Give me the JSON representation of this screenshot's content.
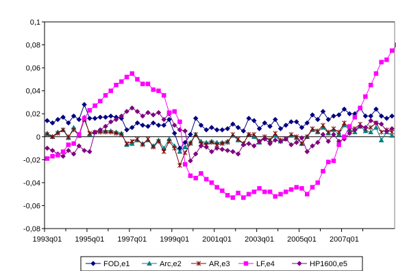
{
  "chart_data": {
    "type": "line",
    "title": "",
    "xlabel": "",
    "ylabel": "",
    "ylim": [
      -0.08,
      0.1
    ],
    "y_ticks": [
      "0,1",
      "0,08",
      "0,06",
      "0,04",
      "0,02",
      "0",
      "-0,02",
      "-0,04",
      "-0,06",
      "-0,08"
    ],
    "x_ticks": [
      "1993q01",
      "1995q01",
      "1997q01",
      "1999q01",
      "2001q01",
      "2003q01",
      "2005q01",
      "2007q01"
    ],
    "x_start": "1993q01",
    "grid": "horizontal major gridline at 0,1 only",
    "legend_position": "bottom",
    "series": [
      {
        "name": "FOD,e1",
        "color": "#000080",
        "marker": "diamond",
        "values": [
          0.014,
          0.012,
          0.015,
          0.017,
          0.012,
          0.018,
          0.015,
          0.028,
          0.016,
          0.016,
          0.017,
          0.017,
          0.018,
          0.017,
          0.016,
          0.006,
          0.008,
          0.012,
          0.01,
          0.009,
          0.012,
          0.01,
          0.01,
          0.015,
          0.003,
          -0.01,
          -0.005,
          0.002,
          0.016,
          0.01,
          0.006,
          0.008,
          0.006,
          0.006,
          0.007,
          0.011,
          0.008,
          0.005,
          0.016,
          0.014,
          0.007,
          0.012,
          0.009,
          0.015,
          0.007,
          0.01,
          0.013,
          0.013,
          0.008,
          0.012,
          0.019,
          0.015,
          0.022,
          0.015,
          0.018,
          0.019,
          0.024,
          0.02,
          0.02,
          0.025,
          0.018,
          0.018,
          0.024,
          0.018,
          0.016,
          0.018
        ]
      },
      {
        "name": "Arc,e2",
        "color": "#008080",
        "marker": "triangle",
        "values": [
          0.003,
          0.0,
          0.004,
          0.006,
          -0.001,
          0.008,
          0.001,
          0.017,
          0.002,
          0.004,
          0.005,
          0.005,
          0.005,
          0.004,
          0.003,
          -0.007,
          -0.006,
          -0.003,
          -0.006,
          -0.003,
          -0.008,
          -0.003,
          -0.01,
          -0.002,
          -0.008,
          -0.013,
          -0.009,
          -0.005,
          0.002,
          -0.004,
          -0.005,
          -0.004,
          -0.005,
          -0.005,
          -0.004,
          0.001,
          -0.003,
          -0.006,
          0.002,
          0.0,
          -0.005,
          -0.001,
          -0.003,
          0.001,
          -0.004,
          -0.002,
          0.001,
          -0.001,
          -0.006,
          0.0,
          0.006,
          0.004,
          0.008,
          0.003,
          0.006,
          0.002,
          0.01,
          0.006,
          0.004,
          0.009,
          0.005,
          0.004,
          0.008,
          -0.003,
          0.004,
          0.001
        ]
      },
      {
        "name": "AR,e3",
        "color": "#800000",
        "marker": "asterisk",
        "values": [
          0.002,
          0.0,
          0.003,
          0.006,
          0.0,
          0.006,
          0.001,
          0.015,
          0.003,
          0.004,
          0.004,
          0.004,
          0.004,
          0.003,
          0.002,
          -0.006,
          -0.004,
          -0.002,
          -0.007,
          -0.002,
          -0.009,
          -0.004,
          -0.013,
          -0.004,
          -0.01,
          -0.025,
          -0.014,
          -0.006,
          0.002,
          -0.006,
          -0.007,
          -0.005,
          -0.007,
          -0.006,
          -0.005,
          0.002,
          -0.002,
          -0.006,
          0.002,
          0.002,
          -0.004,
          0.0,
          -0.003,
          0.003,
          -0.003,
          -0.002,
          0.002,
          0.0,
          -0.006,
          0.0,
          0.007,
          0.005,
          0.01,
          0.004,
          0.007,
          0.004,
          0.012,
          0.007,
          0.007,
          0.011,
          0.007,
          0.008,
          0.012,
          0.004,
          0.006,
          0.004
        ]
      },
      {
        "name": "LF,e4",
        "color": "#ff00ff",
        "marker": "square",
        "values": [
          -0.019,
          -0.017,
          -0.016,
          -0.013,
          -0.007,
          -0.006,
          0.002,
          0.016,
          0.023,
          0.027,
          0.031,
          0.036,
          0.04,
          0.045,
          0.048,
          0.052,
          0.055,
          0.05,
          0.046,
          0.046,
          0.041,
          0.04,
          0.036,
          0.021,
          0.022,
          0.013,
          -0.024,
          -0.034,
          -0.036,
          -0.032,
          -0.037,
          -0.04,
          -0.044,
          -0.047,
          -0.051,
          -0.053,
          -0.049,
          -0.053,
          -0.05,
          -0.048,
          -0.045,
          -0.048,
          -0.048,
          -0.052,
          -0.05,
          -0.048,
          -0.046,
          -0.044,
          -0.045,
          -0.05,
          -0.044,
          -0.04,
          -0.03,
          -0.022,
          -0.021,
          -0.007,
          0.0,
          0.009,
          0.017,
          0.025,
          0.035,
          0.045,
          0.055,
          0.065,
          0.067,
          0.075,
          0.08
        ]
      },
      {
        "name": "HP1600,e5",
        "color": "#800080",
        "marker": "diamond",
        "values": [
          -0.01,
          -0.012,
          -0.015,
          -0.017,
          -0.012,
          -0.015,
          -0.008,
          -0.012,
          -0.013,
          0.004,
          0.006,
          0.009,
          0.013,
          0.015,
          0.018,
          0.022,
          0.025,
          0.022,
          0.018,
          0.021,
          0.019,
          0.021,
          0.015,
          0.02,
          0.01,
          0.006,
          0.005,
          -0.021,
          -0.015,
          -0.008,
          -0.009,
          -0.013,
          -0.01,
          -0.011,
          -0.012,
          -0.013,
          -0.015,
          -0.007,
          -0.006,
          -0.008,
          -0.004,
          -0.002,
          -0.006,
          -0.003,
          -0.004,
          -0.002,
          -0.007,
          -0.005,
          -0.001,
          -0.013,
          -0.008,
          -0.005,
          0.002,
          -0.004,
          0.002,
          -0.004,
          -0.002,
          0.003,
          0.006,
          0.009,
          0.008,
          0.014,
          0.012,
          0.011,
          0.005,
          0.007
        ]
      }
    ]
  }
}
